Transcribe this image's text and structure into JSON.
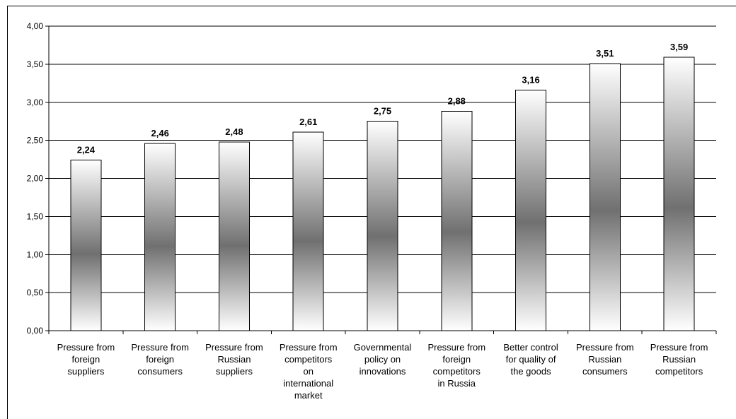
{
  "chart_data": {
    "type": "bar",
    "categories": [
      [
        "Pressure from",
        "foreign",
        "suppliers"
      ],
      [
        "Pressure from",
        "foreign",
        "consumers"
      ],
      [
        "Pressure from",
        "Russian",
        "suppliers"
      ],
      [
        "Pressure from",
        "competitors",
        "on",
        "international",
        "market"
      ],
      [
        "Governmental",
        "policy on",
        "innovations"
      ],
      [
        "Pressure from",
        "foreign",
        "competitors",
        "in Russia"
      ],
      [
        "Better control",
        "for quality of",
        "the goods"
      ],
      [
        "Pressure from",
        "Russian",
        "consumers"
      ],
      [
        "Pressure from",
        "Russian",
        "competitors"
      ]
    ],
    "values": [
      2.24,
      2.46,
      2.48,
      2.61,
      2.75,
      2.88,
      3.16,
      3.51,
      3.59
    ],
    "value_labels": [
      "2,24",
      "2,46",
      "2,48",
      "2,61",
      "2,75",
      "2,88",
      "3,16",
      "3,51",
      "3,59"
    ],
    "ylim": [
      0,
      4
    ],
    "yticks": [
      "0,00",
      "0,50",
      "1,00",
      "1,50",
      "2,00",
      "2,50",
      "3,00",
      "3,50",
      "4,00"
    ],
    "grid": true,
    "legend": "none",
    "colors": {
      "bar_edge": "#000000",
      "bar_light": "#ffffff",
      "bar_dark": "#707070",
      "grid": "#000000"
    }
  }
}
